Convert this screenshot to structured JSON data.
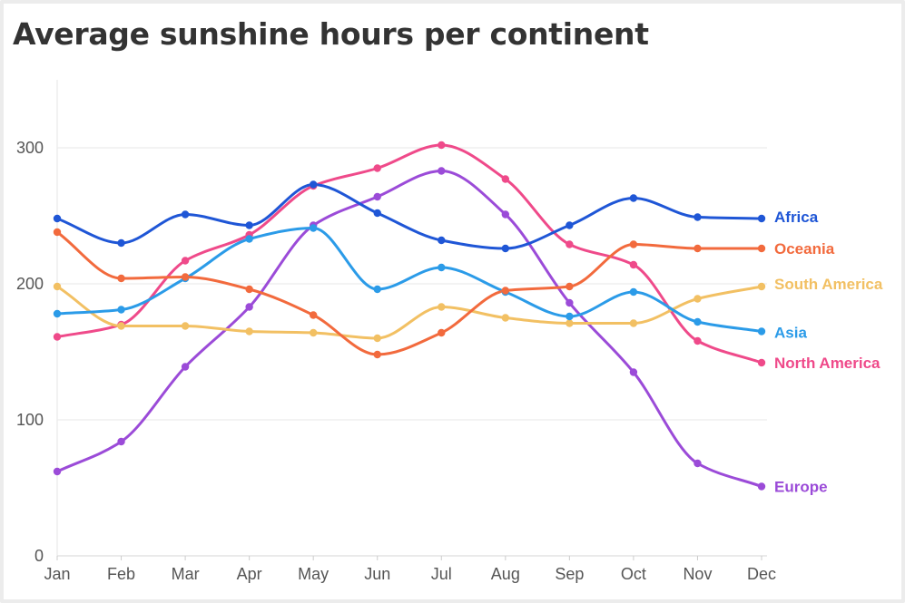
{
  "chart_data": {
    "type": "line",
    "title": "Average sunshine hours per continent",
    "xlabel": "",
    "ylabel": "",
    "ylim": [
      0,
      350
    ],
    "yticks": [
      "0",
      "100",
      "200",
      "300"
    ],
    "categories": [
      "Jan",
      "Feb",
      "Mar",
      "Apr",
      "May",
      "Jun",
      "Jul",
      "Aug",
      "Sep",
      "Oct",
      "Nov",
      "Dec"
    ],
    "grid": true,
    "legend": "direct labels at line ends (right)",
    "series": [
      {
        "name": "Africa",
        "color": "#1f56d6",
        "values": [
          248,
          230,
          251,
          243,
          273,
          252,
          232,
          226,
          243,
          263,
          249,
          248
        ]
      },
      {
        "name": "Oceania",
        "color": "#f26a3d",
        "values": [
          238,
          204,
          205,
          196,
          177,
          148,
          164,
          195,
          198,
          229,
          226,
          226
        ]
      },
      {
        "name": "South America",
        "color": "#f2c063",
        "values": [
          198,
          169,
          169,
          165,
          164,
          160,
          183,
          175,
          171,
          171,
          189,
          198
        ]
      },
      {
        "name": "Asia",
        "color": "#2b9be8",
        "values": [
          178,
          181,
          204,
          233,
          241,
          196,
          212,
          194,
          176,
          194,
          172,
          165
        ]
      },
      {
        "name": "North America",
        "color": "#ef4a8a",
        "values": [
          161,
          170,
          217,
          236,
          272,
          285,
          302,
          277,
          229,
          214,
          158,
          142
        ]
      },
      {
        "name": "Europe",
        "color": "#9b4bd8",
        "values": [
          62,
          84,
          139,
          183,
          243,
          264,
          283,
          251,
          186,
          135,
          68,
          51
        ]
      }
    ]
  }
}
